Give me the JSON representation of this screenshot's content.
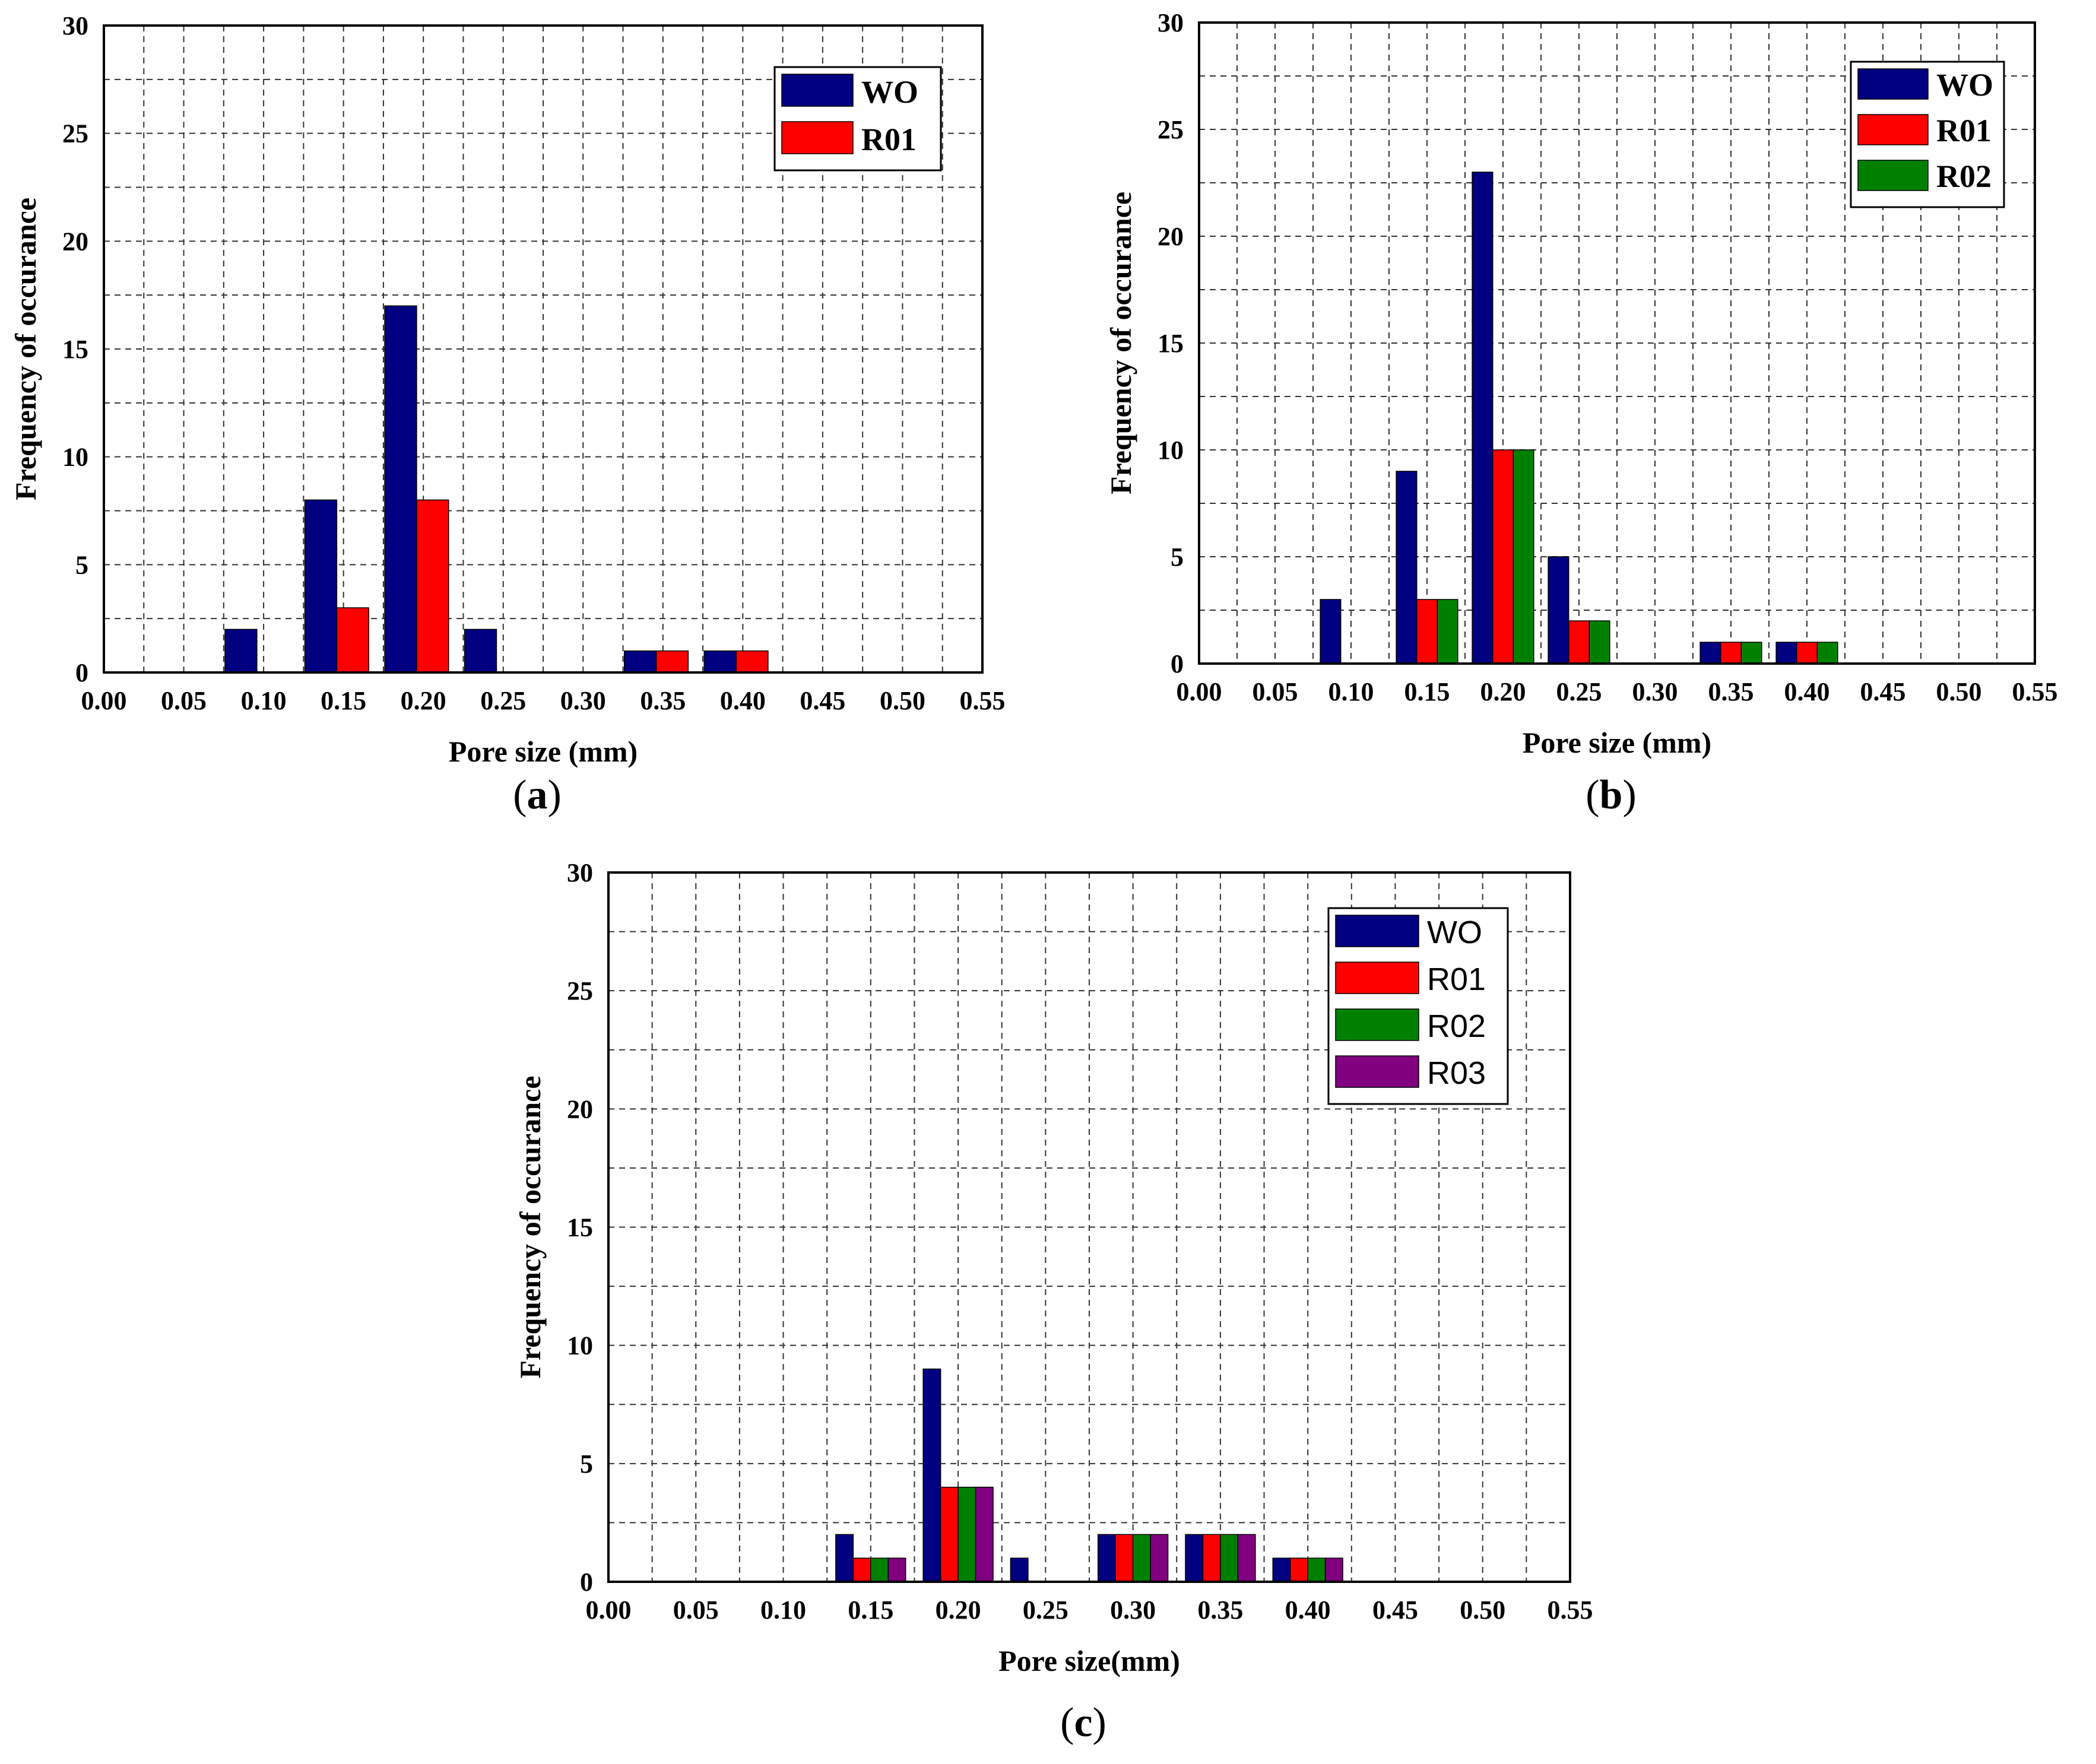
{
  "chart_data": [
    {
      "id": "a",
      "type": "bar",
      "caption_letter": "a",
      "xlabel": "Pore size (mm)",
      "ylabel": "Frequency of occurance",
      "xlim": [
        0.0,
        0.55
      ],
      "ylim": [
        0,
        30
      ],
      "x_ticks": [
        "0.00",
        "0.05",
        "0.10",
        "0.15",
        "0.20",
        "0.25",
        "0.30",
        "0.35",
        "0.40",
        "0.45",
        "0.50",
        "0.55"
      ],
      "y_ticks": [
        "0",
        "5",
        "10",
        "15",
        "20",
        "25",
        "30"
      ],
      "grid": true,
      "legend_position": "top-right",
      "categories": [
        0.1,
        0.15,
        0.2,
        0.25,
        0.35,
        0.4
      ],
      "series": [
        {
          "name": "WO",
          "color": "#000080",
          "values": [
            2,
            8,
            17,
            2,
            1,
            1
          ]
        },
        {
          "name": "R01",
          "color": "#ff0000",
          "values": [
            0,
            3,
            8,
            0,
            1,
            1
          ]
        }
      ]
    },
    {
      "id": "b",
      "type": "bar",
      "caption_letter": "b",
      "xlabel": "Pore size (mm)",
      "ylabel": "Frequency of occurance",
      "xlim": [
        0.0,
        0.55
      ],
      "ylim": [
        0,
        30
      ],
      "x_ticks": [
        "0.00",
        "0.05",
        "0.10",
        "0.15",
        "0.20",
        "0.25",
        "0.30",
        "0.35",
        "0.40",
        "0.45",
        "0.50",
        "0.55"
      ],
      "y_ticks": [
        "0",
        "5",
        "10",
        "15",
        "20",
        "25",
        "30"
      ],
      "grid": true,
      "legend_position": "top-right",
      "categories": [
        0.1,
        0.15,
        0.2,
        0.25,
        0.35,
        0.4
      ],
      "series": [
        {
          "name": "WO",
          "color": "#000080",
          "values": [
            3,
            9,
            23,
            5,
            1,
            1
          ]
        },
        {
          "name": "R01",
          "color": "#ff0000",
          "values": [
            0,
            3,
            10,
            2,
            1,
            1
          ]
        },
        {
          "name": "R02",
          "color": "#008000",
          "values": [
            0,
            3,
            10,
            2,
            1,
            1
          ]
        }
      ]
    },
    {
      "id": "c",
      "type": "bar",
      "caption_letter": "c",
      "xlabel": "Pore size(mm)",
      "ylabel": "Frequency of occurance",
      "xlim": [
        0.0,
        0.55
      ],
      "ylim": [
        0,
        30
      ],
      "x_ticks": [
        "0.00",
        "0.05",
        "0.10",
        "0.15",
        "0.20",
        "0.25",
        "0.30",
        "0.35",
        "0.40",
        "0.45",
        "0.50",
        "0.55"
      ],
      "y_ticks": [
        "0",
        "5",
        "10",
        "15",
        "20",
        "25",
        "30"
      ],
      "grid": true,
      "legend_position": "top-right",
      "categories": [
        0.15,
        0.2,
        0.25,
        0.3,
        0.35,
        0.4
      ],
      "series": [
        {
          "name": "WO",
          "color": "#000080",
          "values": [
            2,
            9,
            1,
            2,
            2,
            1
          ]
        },
        {
          "name": "R01",
          "color": "#ff0000",
          "values": [
            1,
            4,
            0,
            2,
            2,
            1
          ]
        },
        {
          "name": "R02",
          "color": "#008000",
          "values": [
            1,
            4,
            0,
            2,
            2,
            1
          ]
        },
        {
          "name": "R03",
          "color": "#800080",
          "values": [
            1,
            4,
            0,
            2,
            2,
            1
          ]
        }
      ]
    }
  ]
}
